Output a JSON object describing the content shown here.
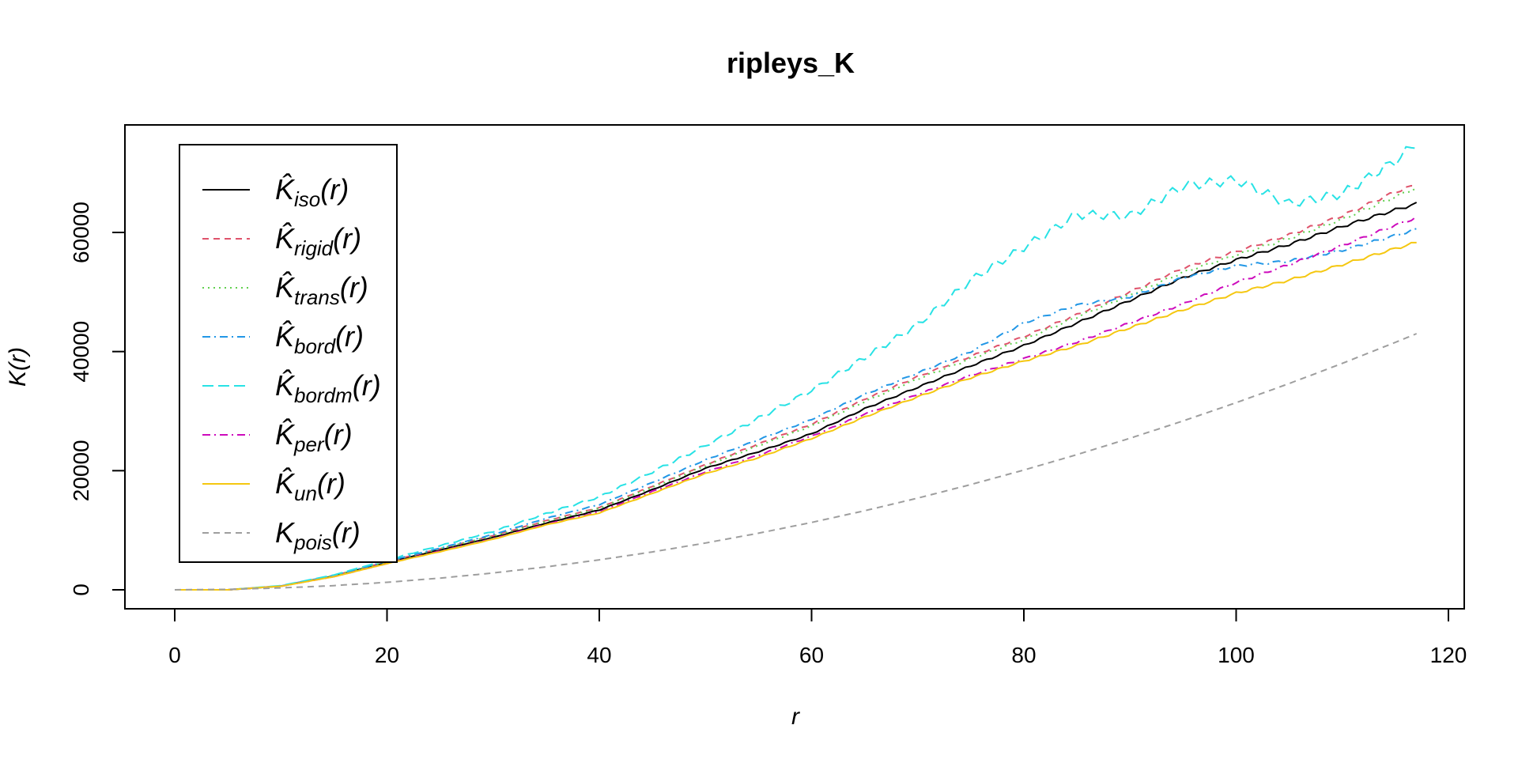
{
  "chart_data": {
    "type": "line",
    "title": "ripleys_K",
    "xlabel": "r",
    "ylabel": "K(r)",
    "xlim": [
      0,
      120
    ],
    "ylim": [
      0,
      70000
    ],
    "xticks": [
      0,
      20,
      40,
      60,
      80,
      100,
      120
    ],
    "yticks": [
      0,
      20000,
      40000,
      60000
    ],
    "grid": false,
    "legend_position": "top-left",
    "x": [
      0,
      5,
      10,
      15,
      20,
      25,
      30,
      35,
      40,
      45,
      50,
      55,
      60,
      65,
      70,
      75,
      80,
      85,
      90,
      95,
      100,
      105,
      110,
      115,
      117
    ],
    "series": [
      {
        "name": "iso",
        "base": "K̂",
        "color": "#000000",
        "dash": "",
        "values": [
          0,
          0,
          600,
          2300,
          4600,
          6700,
          8800,
          11200,
          13400,
          16800,
          20400,
          23200,
          26200,
          30400,
          34000,
          37600,
          41000,
          44800,
          48600,
          52400,
          55400,
          58000,
          61000,
          63800,
          64800
        ]
      },
      {
        "name": "rigid",
        "base": "K̂",
        "color": "#DF536B",
        "dash": "8,6",
        "values": [
          0,
          0,
          650,
          2400,
          4700,
          6900,
          9100,
          11600,
          13800,
          17400,
          21000,
          24500,
          27800,
          32000,
          35800,
          39200,
          42500,
          46200,
          50000,
          54000,
          56800,
          59600,
          62800,
          66800,
          68000
        ]
      },
      {
        "name": "trans",
        "base": "K̂",
        "color": "#61D04F",
        "dash": "2,5",
        "values": [
          0,
          0,
          650,
          2400,
          4700,
          6900,
          9000,
          11500,
          13700,
          17200,
          20800,
          24200,
          27500,
          31600,
          35400,
          38800,
          42000,
          45800,
          49500,
          53300,
          56200,
          59000,
          62200,
          66000,
          67500
        ]
      },
      {
        "name": "bord",
        "base": "K̂",
        "color": "#2297E6",
        "dash": "10,5,2,5",
        "values": [
          0,
          0,
          650,
          2400,
          4800,
          7000,
          9300,
          12000,
          14300,
          18000,
          21800,
          25200,
          28600,
          32800,
          36400,
          40000,
          44800,
          47800,
          49200,
          52400,
          54400,
          55200,
          57000,
          59500,
          60500
        ]
      },
      {
        "name": "bordm",
        "base": "K̂",
        "color": "#28E2E5",
        "dash": "14,6",
        "values": [
          0,
          0,
          700,
          2500,
          5000,
          7400,
          9800,
          12800,
          15600,
          19800,
          24200,
          28800,
          33500,
          39000,
          44500,
          52000,
          57500,
          63000,
          62800,
          67800,
          68800,
          64800,
          66500,
          72000,
          75000
        ]
      },
      {
        "name": "per",
        "base": "K̂",
        "color": "#CD0BBC",
        "dash": "10,5,2,5",
        "values": [
          0,
          0,
          600,
          2200,
          4400,
          6500,
          8600,
          11000,
          13100,
          16500,
          19800,
          22600,
          25800,
          29500,
          32800,
          36000,
          38800,
          41600,
          44800,
          48000,
          51600,
          54600,
          57800,
          61200,
          62500
        ]
      },
      {
        "name": "un",
        "base": "K̂",
        "color": "#F5C710",
        "dash": "",
        "values": [
          0,
          0,
          600,
          2200,
          4400,
          6400,
          8500,
          10900,
          12900,
          16200,
          19500,
          22200,
          25400,
          29000,
          32400,
          35600,
          38400,
          41000,
          44000,
          47000,
          49800,
          52000,
          54600,
          57300,
          58300
        ]
      },
      {
        "name": "pois",
        "base": "K",
        "color": "#9E9E9E",
        "dash": "8,6",
        "values": [
          0,
          79,
          314,
          707,
          1257,
          1963,
          2827,
          3848,
          5027,
          6362,
          7854,
          9503,
          11310,
          13273,
          15394,
          17671,
          20106,
          22698,
          25447,
          28353,
          31416,
          34636,
          38013,
          41548,
          43005
        ]
      }
    ]
  }
}
